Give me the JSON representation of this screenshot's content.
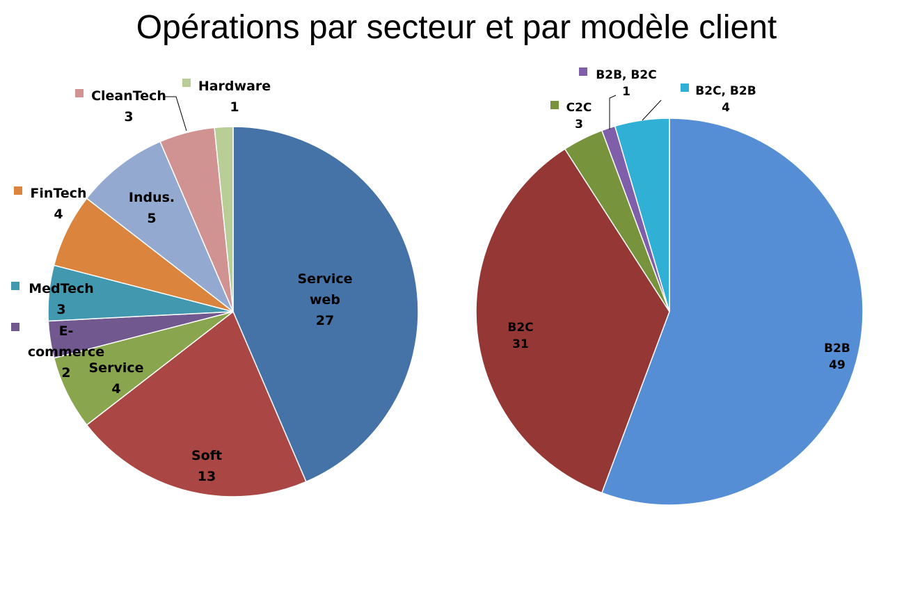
{
  "title": "Opérations par secteur et par modèle client",
  "chart_data": [
    {
      "type": "pie",
      "title": "",
      "slices": [
        {
          "label": "Service web",
          "value": 27,
          "color": "#4572A7"
        },
        {
          "label": "Soft",
          "value": 13,
          "color": "#AA4643"
        },
        {
          "label": "Service",
          "value": 4,
          "color": "#89A54E"
        },
        {
          "label": "E-commerce",
          "value": 2,
          "color": "#71588F"
        },
        {
          "label": "MedTech",
          "value": 3,
          "color": "#4198AF"
        },
        {
          "label": "FinTech",
          "value": 4,
          "color": "#DB843D"
        },
        {
          "label": "Indus.",
          "value": 5,
          "color": "#93A9CF"
        },
        {
          "label": "CleanTech",
          "value": 3,
          "color": "#D19392"
        },
        {
          "label": "Hardware",
          "value": 1,
          "color": "#B9CD96"
        }
      ]
    },
    {
      "type": "pie",
      "title": "",
      "slices": [
        {
          "label": "B2B",
          "value": 49,
          "color": "#558ED5"
        },
        {
          "label": "B2C",
          "value": 31,
          "color": "#953735"
        },
        {
          "label": "C2C",
          "value": 3,
          "color": "#77933C"
        },
        {
          "label": "B2B, B2C",
          "value": 1,
          "color": "#7F5FA9"
        },
        {
          "label": "B2C, B2B",
          "value": 4,
          "color": "#31B0D5"
        }
      ]
    }
  ]
}
